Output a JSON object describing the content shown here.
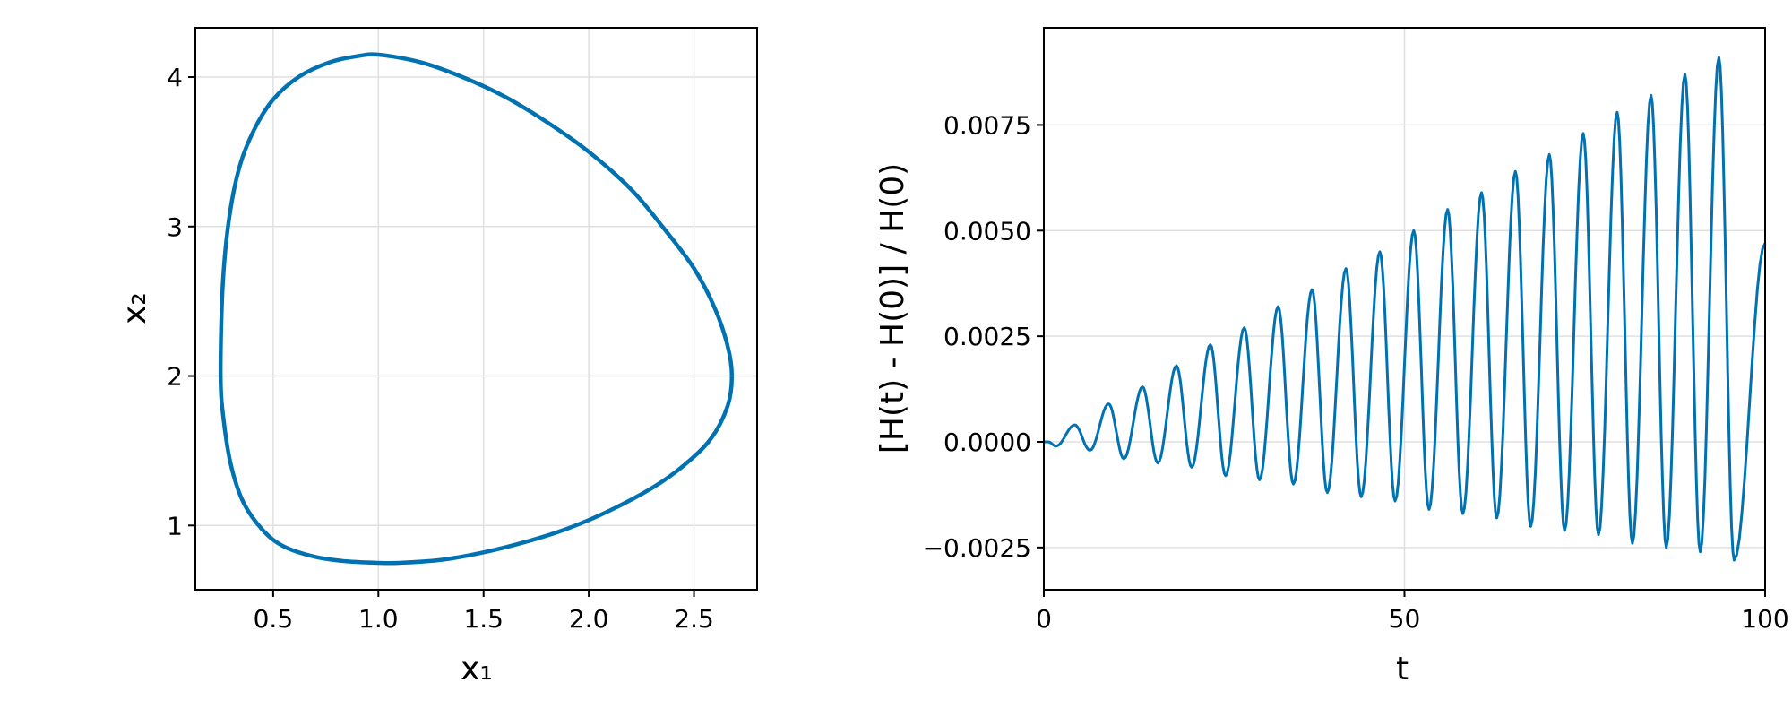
{
  "chart_data": [
    {
      "type": "line",
      "xlabel": "x₁",
      "ylabel": "x₂",
      "xlim": [
        0.13,
        2.8
      ],
      "ylim": [
        0.57,
        4.33
      ],
      "x_ticks": [
        0.5,
        1.0,
        1.5,
        2.0,
        2.5
      ],
      "x_tick_labels": [
        "0.5",
        "1.0",
        "1.5",
        "2.0",
        "2.5"
      ],
      "y_ticks": [
        1,
        2,
        3,
        4
      ],
      "y_tick_labels": [
        "1",
        "2",
        "3",
        "4"
      ],
      "grid": true,
      "color": "#0072b2",
      "series": [
        {
          "x": [
            0.25,
            0.26,
            0.29,
            0.34,
            0.41,
            0.5,
            0.62,
            0.77,
            0.9,
            1.0,
            1.2,
            1.4,
            1.6,
            1.8,
            2.0,
            2.2,
            2.35,
            2.5,
            2.6,
            2.66,
            2.68,
            2.66,
            2.58,
            2.45,
            2.3,
            2.1,
            1.9,
            1.7,
            1.5,
            1.3,
            1.1,
            1.0,
            0.85,
            0.7,
            0.55,
            0.45,
            0.36,
            0.3,
            0.265,
            0.25
          ],
          "y": [
            2.0,
            2.6,
            3.05,
            3.4,
            3.65,
            3.85,
            4.0,
            4.1,
            4.14,
            4.15,
            4.1,
            4.0,
            3.87,
            3.7,
            3.5,
            3.25,
            3.0,
            2.72,
            2.45,
            2.2,
            2.0,
            1.8,
            1.58,
            1.4,
            1.25,
            1.1,
            0.98,
            0.89,
            0.82,
            0.77,
            0.75,
            0.75,
            0.76,
            0.79,
            0.86,
            0.97,
            1.15,
            1.4,
            1.7,
            2.0
          ]
        }
      ]
    },
    {
      "type": "line",
      "xlabel": "t",
      "ylabel": "[H(t) - H(0)] / H(0)",
      "xlim": [
        0,
        100
      ],
      "ylim": [
        -0.0035,
        0.0098
      ],
      "x_ticks": [
        0,
        50,
        100
      ],
      "x_tick_labels": [
        "0",
        "50",
        "100"
      ],
      "y_ticks": [
        -0.0025,
        0.0,
        0.0025,
        0.005,
        0.0075
      ],
      "y_tick_labels": [
        "−0.0025",
        "0.0000",
        "0.0025",
        "0.0050",
        "0.0075"
      ],
      "grid": true,
      "color": "#0072b2",
      "series": [
        {
          "period": 4.7,
          "t_end": 100,
          "peaks": [
            0.0004,
            0.0009,
            0.0013,
            0.0018,
            0.0023,
            0.0027,
            0.0032,
            0.0036,
            0.0041,
            0.0045,
            0.005,
            0.0055,
            0.0059,
            0.0064,
            0.0068,
            0.0073,
            0.0078,
            0.0082,
            0.0087,
            0.0091
          ],
          "troughs": [
            -0.0001,
            -0.0002,
            -0.0004,
            -0.0005,
            -0.0006,
            -0.0008,
            -0.0009,
            -0.001,
            -0.0012,
            -0.0013,
            -0.0014,
            -0.0016,
            -0.0017,
            -0.0018,
            -0.002,
            -0.0021,
            -0.0022,
            -0.0024,
            -0.0025,
            -0.0026,
            -0.0028,
            -0.0029
          ],
          "end_value": 0.0047
        }
      ]
    }
  ]
}
